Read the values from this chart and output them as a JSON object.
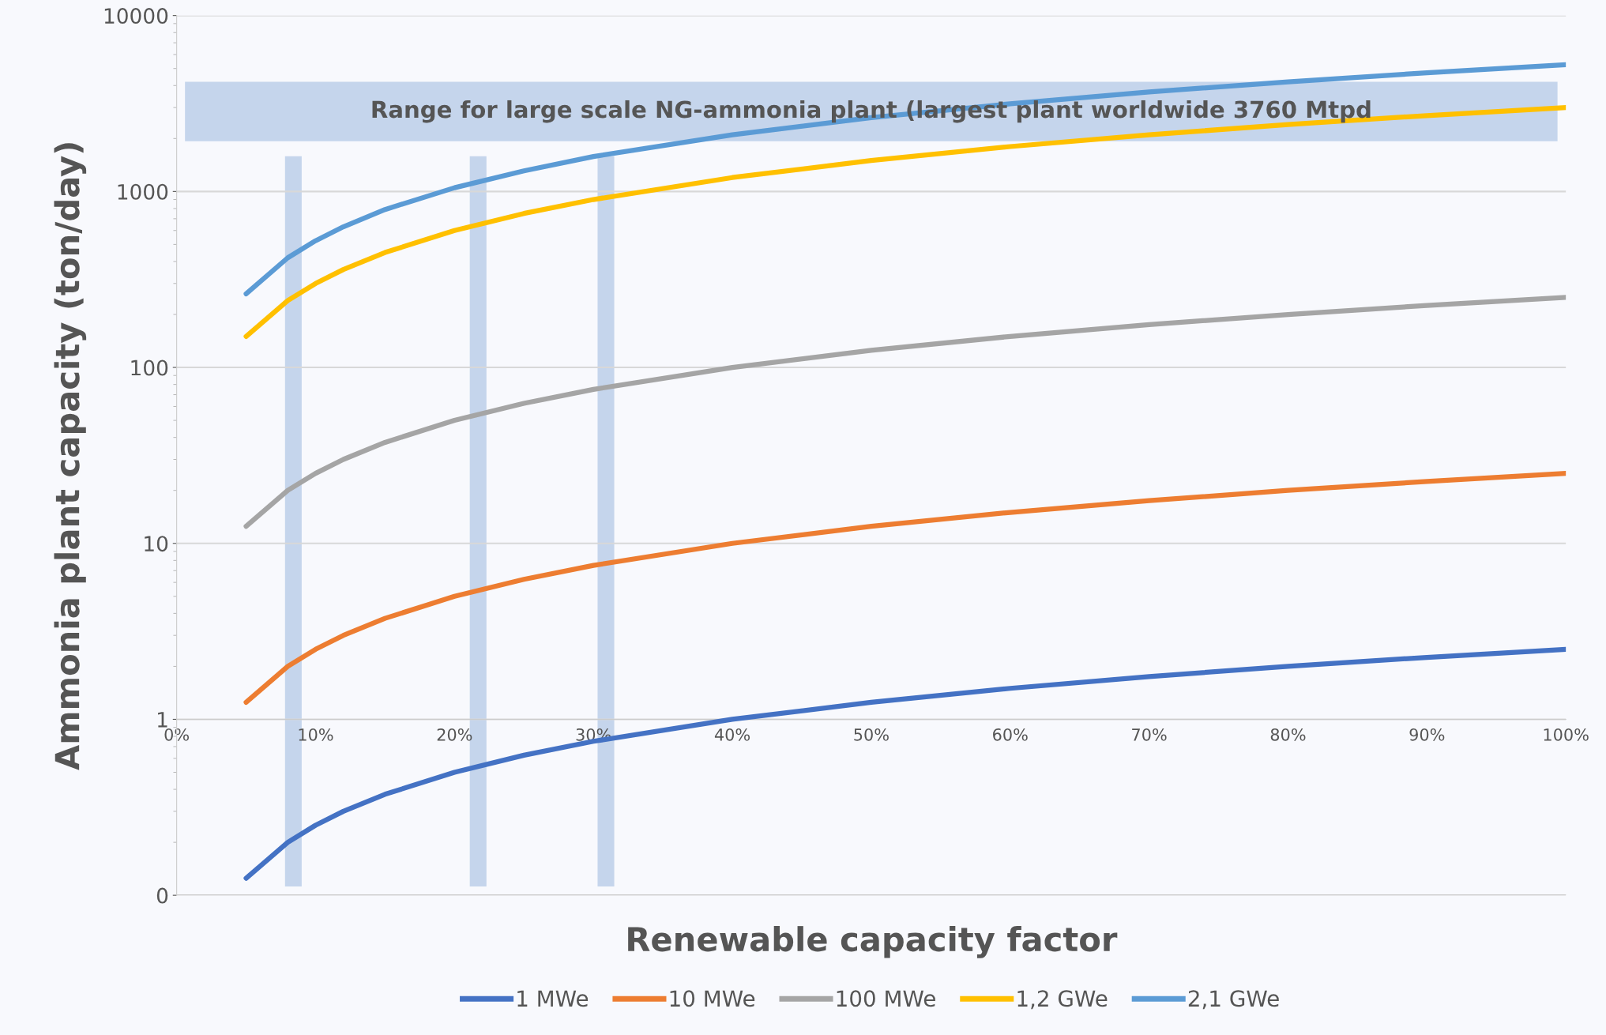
{
  "chart_data": {
    "type": "line",
    "xlabel": "Renewable capacity factor",
    "ylabel": "Ammonia plant capacity (ton/day)",
    "x": [
      5,
      8,
      10,
      12,
      15,
      20,
      25,
      30,
      40,
      50,
      60,
      70,
      80,
      90,
      100
    ],
    "series": [
      {
        "name": "1 MWe",
        "color": "#4472c4",
        "values": [
          0.125,
          0.2,
          0.25,
          0.3,
          0.375,
          0.5,
          0.625,
          0.75,
          1.0,
          1.25,
          1.5,
          1.75,
          2.0,
          2.25,
          2.5
        ]
      },
      {
        "name": "10 MWe",
        "color": "#ed7d31",
        "values": [
          1.25,
          2,
          2.5,
          3,
          3.75,
          5,
          6.25,
          7.5,
          10,
          12.5,
          15,
          17.5,
          20,
          22.5,
          25
        ]
      },
      {
        "name": "100 MWe",
        "color": "#a5a5a5",
        "values": [
          12.5,
          20,
          25,
          30,
          37.5,
          50,
          62.5,
          75,
          100,
          125,
          150,
          175,
          200,
          225,
          250
        ]
      },
      {
        "name": "1,2 GWe",
        "color": "#ffc000",
        "values": [
          150,
          240,
          300,
          360,
          450,
          600,
          750,
          900,
          1200,
          1500,
          1800,
          2100,
          2400,
          2700,
          3000
        ]
      },
      {
        "name": "2,1 GWe",
        "color": "#5b9bd5",
        "values": [
          262,
          420,
          525,
          630,
          790,
          1050,
          1310,
          1580,
          2100,
          2630,
          3150,
          3680,
          4200,
          4730,
          5250
        ]
      }
    ],
    "xlim": [
      0,
      100
    ],
    "xticks": [
      {
        "value": 0,
        "label": "0%"
      },
      {
        "value": 10,
        "label": "10%"
      },
      {
        "value": 20,
        "label": "20%"
      },
      {
        "value": 30,
        "label": "30%"
      },
      {
        "value": 40,
        "label": "40%"
      },
      {
        "value": 50,
        "label": "50%"
      },
      {
        "value": 60,
        "label": "60%"
      },
      {
        "value": 70,
        "label": "70%"
      },
      {
        "value": 80,
        "label": "80%"
      },
      {
        "value": 90,
        "label": "90%"
      },
      {
        "value": 100,
        "label": "100%"
      }
    ],
    "log": "y",
    "ylim": [
      0.1,
      10000
    ],
    "yticks": [
      {
        "value": 0.1,
        "label": "0"
      },
      1,
      10,
      100,
      1000,
      10000
    ],
    "bands": [
      {
        "axis": "y",
        "from": 1930,
        "to": 4200,
        "label": "Range for large scale NG-ammonia plant (largest plant worldwide 3760 Mtpd",
        "color": "#c5d5ec"
      },
      {
        "axis": "x",
        "from": 7.8,
        "to": 9.0,
        "color": "#c5d5ec"
      },
      {
        "axis": "x",
        "from": 21.1,
        "to": 22.3,
        "color": "#c5d5ec"
      },
      {
        "axis": "x",
        "from": 30.3,
        "to": 31.5,
        "color": "#c5d5ec"
      }
    ],
    "grid": "y",
    "legend": "bottom",
    "marker": "none",
    "line_style": "solid"
  }
}
